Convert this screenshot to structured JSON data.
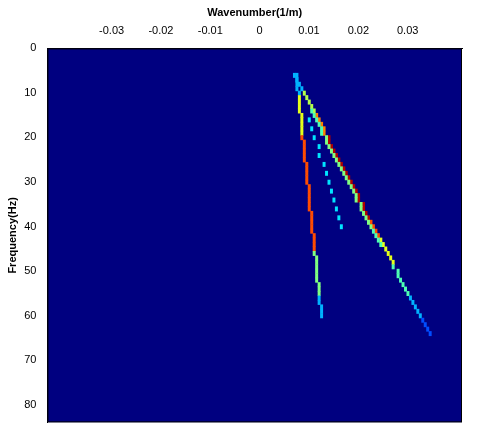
{
  "chart_data": {
    "type": "heatmap",
    "xlabel": "Wavenumber(1/m)",
    "ylabel": "Frequency(Hz)",
    "xlim": [
      -0.043,
      0.041
    ],
    "xticks": [
      -0.03,
      -0.02,
      -0.01,
      0,
      0.01,
      0.02,
      0.03
    ],
    "ylim": [
      0,
      84
    ],
    "yticks": [
      0,
      10,
      20,
      30,
      40,
      50,
      60,
      70,
      80
    ],
    "zlim": [
      0,
      1
    ],
    "grid": false,
    "cells": [
      [
        0.0075,
        6,
        0.3
      ],
      [
        0.0075,
        7,
        0.3
      ],
      [
        0.0075,
        8,
        0.3
      ],
      [
        0.0075,
        9,
        0.3
      ],
      [
        0.008,
        10,
        0.3
      ],
      [
        0.008,
        11,
        0.6
      ],
      [
        0.008,
        12,
        0.6
      ],
      [
        0.008,
        13,
        0.6
      ],
      [
        0.008,
        14,
        0.6
      ],
      [
        0.0085,
        15,
        0.6
      ],
      [
        0.0085,
        16,
        0.6
      ],
      [
        0.0085,
        17,
        0.6
      ],
      [
        0.0085,
        18,
        0.6
      ],
      [
        0.0085,
        19,
        0.6
      ],
      [
        0.0085,
        20,
        0.8
      ],
      [
        0.009,
        21,
        0.8
      ],
      [
        0.009,
        22,
        0.8
      ],
      [
        0.009,
        23,
        0.8
      ],
      [
        0.009,
        24,
        0.8
      ],
      [
        0.009,
        25,
        0.8
      ],
      [
        0.0095,
        26,
        0.8
      ],
      [
        0.0095,
        27,
        0.8
      ],
      [
        0.0095,
        28,
        0.8
      ],
      [
        0.0095,
        29,
        0.8
      ],
      [
        0.0095,
        30,
        0.8
      ],
      [
        0.01,
        31,
        0.8
      ],
      [
        0.01,
        32,
        0.8
      ],
      [
        0.01,
        33,
        0.8
      ],
      [
        0.01,
        34,
        0.8
      ],
      [
        0.01,
        35,
        0.8
      ],
      [
        0.01,
        36,
        0.8
      ],
      [
        0.0105,
        37,
        0.8
      ],
      [
        0.0105,
        38,
        0.8
      ],
      [
        0.0105,
        39,
        0.8
      ],
      [
        0.0105,
        40,
        0.8
      ],
      [
        0.0105,
        41,
        0.8
      ],
      [
        0.011,
        42,
        0.8
      ],
      [
        0.011,
        43,
        0.8
      ],
      [
        0.011,
        44,
        0.8
      ],
      [
        0.011,
        45,
        0.8
      ],
      [
        0.011,
        46,
        0.5
      ],
      [
        0.0115,
        47,
        0.5
      ],
      [
        0.0115,
        48,
        0.5
      ],
      [
        0.0115,
        49,
        0.5
      ],
      [
        0.0115,
        50,
        0.5
      ],
      [
        0.0115,
        51,
        0.5
      ],
      [
        0.0115,
        52,
        0.5
      ],
      [
        0.012,
        53,
        0.5
      ],
      [
        0.012,
        54,
        0.5
      ],
      [
        0.012,
        55,
        0.5
      ],
      [
        0.012,
        56,
        0.3
      ],
      [
        0.012,
        57,
        0.3
      ],
      [
        0.0125,
        58,
        0.3
      ],
      [
        0.0125,
        59,
        0.3
      ],
      [
        0.0125,
        60,
        0.3
      ],
      [
        0.007,
        6,
        0.3
      ],
      [
        0.0075,
        7,
        0.3
      ],
      [
        0.008,
        8,
        0.3
      ],
      [
        0.0085,
        9,
        0.3
      ],
      [
        0.009,
        10,
        0.55
      ],
      [
        0.0095,
        11,
        0.55
      ],
      [
        0.01,
        12,
        0.55
      ],
      [
        0.0105,
        13,
        0.55
      ],
      [
        0.011,
        14,
        0.55
      ],
      [
        0.0115,
        15,
        0.75
      ],
      [
        0.012,
        16,
        0.75
      ],
      [
        0.0125,
        17,
        0.75
      ],
      [
        0.013,
        18,
        0.75
      ],
      [
        0.013,
        19,
        0.75
      ],
      [
        0.014,
        20,
        0.95
      ],
      [
        0.014,
        21,
        0.95
      ],
      [
        0.0145,
        22,
        0.95
      ],
      [
        0.015,
        23,
        0.95
      ],
      [
        0.0155,
        24,
        0.95
      ],
      [
        0.016,
        25,
        0.95
      ],
      [
        0.0165,
        26,
        0.95
      ],
      [
        0.017,
        27,
        0.95
      ],
      [
        0.0175,
        28,
        0.95
      ],
      [
        0.018,
        29,
        0.95
      ],
      [
        0.0185,
        30,
        0.95
      ],
      [
        0.019,
        31,
        0.95
      ],
      [
        0.0195,
        32,
        0.95
      ],
      [
        0.02,
        33,
        0.95
      ],
      [
        0.02,
        34,
        0.95
      ],
      [
        0.021,
        35,
        0.95
      ],
      [
        0.021,
        36,
        0.95
      ],
      [
        0.0215,
        37,
        0.95
      ],
      [
        0.022,
        38,
        0.95
      ],
      [
        0.0225,
        39,
        0.8
      ],
      [
        0.023,
        40,
        0.8
      ],
      [
        0.0235,
        41,
        0.8
      ],
      [
        0.024,
        42,
        0.8
      ],
      [
        0.0245,
        43,
        0.6
      ],
      [
        0.025,
        44,
        0.6
      ],
      [
        0.0255,
        45,
        0.6
      ],
      [
        0.026,
        46,
        0.6
      ],
      [
        0.0265,
        47,
        0.6
      ],
      [
        0.027,
        48,
        0.6
      ],
      [
        0.027,
        49,
        0.45
      ],
      [
        0.028,
        50,
        0.45
      ],
      [
        0.028,
        51,
        0.45
      ],
      [
        0.0285,
        52,
        0.45
      ],
      [
        0.029,
        53,
        0.45
      ],
      [
        0.0295,
        54,
        0.45
      ],
      [
        0.03,
        55,
        0.45
      ],
      [
        0.0305,
        56,
        0.3
      ],
      [
        0.031,
        57,
        0.3
      ],
      [
        0.0315,
        58,
        0.3
      ],
      [
        0.032,
        59,
        0.3
      ],
      [
        0.0325,
        60,
        0.3
      ],
      [
        0.033,
        61,
        0.2
      ],
      [
        0.0335,
        62,
        0.2
      ],
      [
        0.034,
        63,
        0.2
      ],
      [
        0.0345,
        64,
        0.2
      ],
      [
        0.0105,
        14,
        0.45
      ],
      [
        0.011,
        15,
        0.45
      ],
      [
        0.0115,
        16,
        0.45
      ],
      [
        0.012,
        17,
        0.45
      ],
      [
        0.0125,
        18,
        0.45
      ],
      [
        0.0125,
        19,
        0.45
      ],
      [
        0.0135,
        20,
        0.5
      ],
      [
        0.0135,
        21,
        0.5
      ],
      [
        0.014,
        22,
        0.5
      ],
      [
        0.0145,
        23,
        0.5
      ],
      [
        0.015,
        24,
        0.5
      ],
      [
        0.0155,
        25,
        0.5
      ],
      [
        0.016,
        26,
        0.5
      ],
      [
        0.0165,
        27,
        0.5
      ],
      [
        0.017,
        28,
        0.5
      ],
      [
        0.0175,
        29,
        0.5
      ],
      [
        0.018,
        30,
        0.5
      ],
      [
        0.0185,
        31,
        0.5
      ],
      [
        0.019,
        32,
        0.5
      ],
      [
        0.0195,
        33,
        0.5
      ],
      [
        0.0195,
        34,
        0.5
      ],
      [
        0.0205,
        35,
        0.5
      ],
      [
        0.0205,
        36,
        0.5
      ],
      [
        0.021,
        37,
        0.5
      ],
      [
        0.0215,
        38,
        0.5
      ],
      [
        0.022,
        39,
        0.5
      ],
      [
        0.0225,
        40,
        0.5
      ],
      [
        0.023,
        41,
        0.45
      ],
      [
        0.0235,
        42,
        0.45
      ],
      [
        0.024,
        43,
        0.45
      ],
      [
        0.0245,
        44,
        0.45
      ],
      [
        0.01,
        16,
        0.35
      ],
      [
        0.0105,
        18,
        0.35
      ],
      [
        0.011,
        20,
        0.35
      ],
      [
        0.012,
        22,
        0.35
      ],
      [
        0.012,
        24,
        0.35
      ],
      [
        0.013,
        26,
        0.35
      ],
      [
        0.0135,
        28,
        0.35
      ],
      [
        0.014,
        30,
        0.35
      ],
      [
        0.0145,
        32,
        0.35
      ],
      [
        0.015,
        34,
        0.35
      ],
      [
        0.0155,
        36,
        0.35
      ],
      [
        0.016,
        38,
        0.35
      ],
      [
        0.0165,
        40,
        0.35
      ]
    ]
  }
}
